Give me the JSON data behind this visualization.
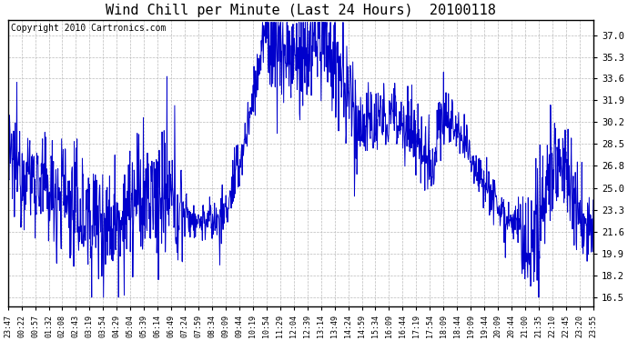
{
  "title": "Wind Chill per Minute (Last 24 Hours)  20100118",
  "copyright": "Copyright 2010 Cartronics.com",
  "ylabel_right": [
    "37.0",
    "35.3",
    "33.6",
    "31.9",
    "30.2",
    "28.5",
    "26.8",
    "25.0",
    "23.3",
    "21.6",
    "19.9",
    "18.2",
    "16.5"
  ],
  "yticks": [
    37.0,
    35.3,
    33.6,
    31.9,
    30.2,
    28.5,
    26.8,
    25.0,
    23.3,
    21.6,
    19.9,
    18.2,
    16.5
  ],
  "ylim": [
    15.8,
    38.2
  ],
  "xtick_labels": [
    "23:47",
    "00:22",
    "00:57",
    "01:32",
    "02:08",
    "02:43",
    "03:19",
    "03:54",
    "04:29",
    "05:04",
    "05:39",
    "06:14",
    "06:49",
    "07:24",
    "07:59",
    "08:34",
    "09:09",
    "09:44",
    "10:19",
    "10:54",
    "11:29",
    "12:04",
    "12:39",
    "13:14",
    "13:49",
    "14:24",
    "14:59",
    "15:34",
    "16:09",
    "16:44",
    "17:19",
    "17:54",
    "18:09",
    "18:44",
    "19:09",
    "19:44",
    "20:09",
    "20:44",
    "21:00",
    "21:35",
    "22:10",
    "22:45",
    "23:20",
    "23:55"
  ],
  "line_color": "#0000cc",
  "bg_color": "#ffffff",
  "grid_color": "#bbbbbb",
  "title_fontsize": 11,
  "copyright_fontsize": 7
}
